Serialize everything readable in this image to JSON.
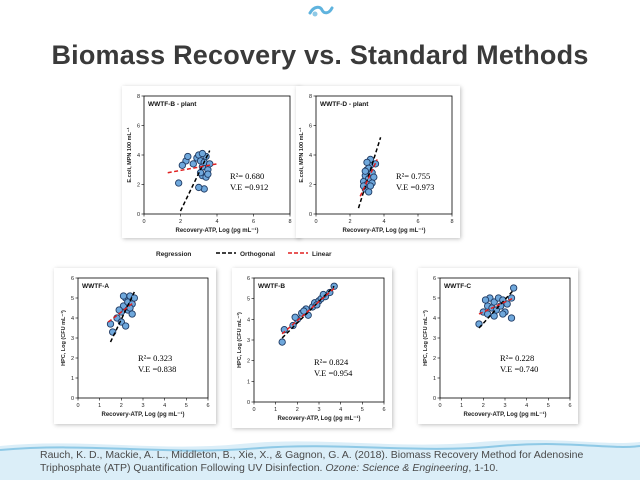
{
  "slide": {
    "title": "Biomass Recovery vs. Standard Methods",
    "citation_part1": "Rauch, K. D., Mackie, A. L., Middleton, B., Xie, X., & Gagnon, G. A. (2018). Biomass Recovery Method for Adenosine Triphosphate (ATP) Quantification Following UV Disinfection. ",
    "citation_journal": "Ozone: Science & Engineering",
    "citation_part2": ", 1-10."
  },
  "legend": {
    "title": "Regression",
    "items": [
      {
        "label": "Orthogonal",
        "color": "#000000",
        "style": "dashed"
      },
      {
        "label": "Linear",
        "color": "#e02020",
        "style": "dashed"
      }
    ]
  },
  "colors": {
    "marker_fill": "#6fa8dc",
    "marker_stroke": "#1f3a63",
    "orthogonal_line": "#000000",
    "linear_line": "#e02020",
    "accent_wave": "#8ec9e6"
  },
  "chart_data": [
    {
      "type": "scatter",
      "title": "WWTF-B - plant",
      "xlabel": "Recovery-ATP,  Log (pg mL⁻¹)",
      "ylabel": "E.coli,  MPN 100 mL⁻¹",
      "xlim": [
        0,
        8
      ],
      "ylim": [
        0,
        8
      ],
      "xticks": [
        0,
        2,
        4,
        6,
        8
      ],
      "yticks": [
        0,
        2,
        4,
        6,
        8
      ],
      "r2": "R²= 0.680",
      "ve": "V.E =0.912",
      "points": [
        [
          2.3,
          3.6
        ],
        [
          2.4,
          3.9
        ],
        [
          2.7,
          3.4
        ],
        [
          2.9,
          3.8
        ],
        [
          3.0,
          4.0
        ],
        [
          3.1,
          3.6
        ],
        [
          3.2,
          3.2
        ],
        [
          3.3,
          3.5
        ],
        [
          3.4,
          3.9
        ],
        [
          3.5,
          3.0
        ],
        [
          3.2,
          2.6
        ],
        [
          3.4,
          2.5
        ],
        [
          3.1,
          2.8
        ],
        [
          1.9,
          2.1
        ],
        [
          3.6,
          3.4
        ],
        [
          3.3,
          1.7
        ],
        [
          3.0,
          1.8
        ],
        [
          2.1,
          3.3
        ],
        [
          3.5,
          2.7
        ],
        [
          3.2,
          4.1
        ]
      ],
      "orthogonal": [
        [
          2.0,
          0.2
        ],
        [
          3.6,
          4.3
        ]
      ],
      "linear": [
        [
          1.3,
          2.8
        ],
        [
          4.0,
          3.4
        ]
      ]
    },
    {
      "type": "scatter",
      "title": "WWTF-D - plant",
      "xlabel": "Recovery-ATP,  Log (pg mL⁻¹)",
      "ylabel": "E.coli,  MPN 100 mL⁻¹",
      "xlim": [
        0,
        8
      ],
      "ylim": [
        0,
        8
      ],
      "xticks": [
        0,
        2,
        4,
        6,
        8
      ],
      "yticks": [
        0,
        2,
        4,
        6,
        8
      ],
      "r2": "R²= 0.755",
      "ve": "V.E =0.973",
      "points": [
        [
          2.8,
          2.2
        ],
        [
          2.9,
          2.6
        ],
        [
          3.0,
          3.0
        ],
        [
          3.1,
          2.4
        ],
        [
          3.2,
          3.3
        ],
        [
          3.0,
          2.0
        ],
        [
          2.9,
          1.7
        ],
        [
          3.1,
          1.5
        ],
        [
          3.3,
          2.8
        ],
        [
          3.2,
          3.7
        ],
        [
          3.4,
          2.5
        ],
        [
          3.0,
          3.5
        ],
        [
          2.8,
          1.9
        ],
        [
          3.3,
          2.1
        ],
        [
          3.1,
          3.1
        ],
        [
          2.9,
          2.9
        ],
        [
          3.5,
          3.4
        ],
        [
          3.2,
          1.9
        ]
      ],
      "orthogonal": [
        [
          2.5,
          0.4
        ],
        [
          3.8,
          5.2
        ]
      ],
      "linear": [
        [
          2.6,
          1.2
        ],
        [
          3.6,
          3.7
        ]
      ]
    },
    {
      "type": "scatter",
      "title": "WWTF-A",
      "xlabel": "Recovery-ATP,  Log (pg mL⁻¹)",
      "ylabel": "HPC,  Log (CFU mL⁻¹)",
      "xlim": [
        0,
        6
      ],
      "ylim": [
        0,
        6
      ],
      "xticks": [
        0,
        1,
        2,
        3,
        4,
        5,
        6
      ],
      "yticks": [
        0,
        1,
        2,
        3,
        4,
        5,
        6
      ],
      "r2": "R²= 0.323",
      "ve": "V.E =0.838",
      "points": [
        [
          1.5,
          3.7
        ],
        [
          1.6,
          3.3
        ],
        [
          1.8,
          4.0
        ],
        [
          2.0,
          4.3
        ],
        [
          2.1,
          4.6
        ],
        [
          2.2,
          5.0
        ],
        [
          2.3,
          4.8
        ],
        [
          2.4,
          5.1
        ],
        [
          2.5,
          4.7
        ],
        [
          2.3,
          4.4
        ],
        [
          2.0,
          3.8
        ],
        [
          2.2,
          3.6
        ],
        [
          1.9,
          4.4
        ],
        [
          2.4,
          4.5
        ],
        [
          2.6,
          5.0
        ],
        [
          2.1,
          5.1
        ],
        [
          2.5,
          4.2
        ]
      ],
      "orthogonal": [
        [
          1.5,
          2.8
        ],
        [
          2.6,
          5.3
        ]
      ],
      "linear": [
        [
          1.4,
          3.8
        ],
        [
          2.6,
          4.8
        ]
      ]
    },
    {
      "type": "scatter",
      "title": "WWTF-B",
      "xlabel": "Recovery-ATP,  Log (pg mL⁻¹)",
      "ylabel": "HPC,  Log (CFU mL⁻¹)",
      "xlim": [
        0,
        6
      ],
      "ylim": [
        0,
        6
      ],
      "xticks": [
        0,
        1,
        2,
        3,
        4,
        5,
        6
      ],
      "yticks": [
        0,
        1,
        2,
        3,
        4,
        5,
        6
      ],
      "r2": "R²= 0.824",
      "ve": "V.E =0.954",
      "points": [
        [
          1.3,
          2.9
        ],
        [
          1.4,
          3.5
        ],
        [
          1.8,
          3.7
        ],
        [
          2.0,
          4.0
        ],
        [
          2.2,
          4.3
        ],
        [
          2.4,
          4.5
        ],
        [
          2.5,
          4.2
        ],
        [
          2.7,
          4.6
        ],
        [
          2.8,
          4.8
        ],
        [
          3.0,
          4.9
        ],
        [
          3.1,
          5.0
        ],
        [
          3.3,
          5.1
        ],
        [
          3.5,
          5.3
        ],
        [
          3.7,
          5.6
        ],
        [
          2.3,
          4.4
        ],
        [
          1.9,
          4.1
        ],
        [
          2.9,
          4.7
        ],
        [
          3.2,
          5.2
        ]
      ],
      "orthogonal": [
        [
          1.3,
          3.1
        ],
        [
          3.7,
          5.6
        ]
      ],
      "linear": [
        [
          1.3,
          3.3
        ],
        [
          3.7,
          5.5
        ]
      ]
    },
    {
      "type": "scatter",
      "title": "WWTF-C",
      "xlabel": "Recovery-ATP,  Log (pg mL⁻¹)",
      "ylabel": "HPC,  Log (CFU mL⁻¹)",
      "xlim": [
        0,
        6
      ],
      "ylim": [
        0,
        6
      ],
      "xticks": [
        0,
        1,
        2,
        3,
        4,
        5,
        6
      ],
      "yticks": [
        0,
        1,
        2,
        3,
        4,
        5,
        6
      ],
      "r2": "R²= 0.228",
      "ve": "V.E =0.740",
      "points": [
        [
          1.8,
          3.7
        ],
        [
          2.0,
          4.3
        ],
        [
          2.2,
          4.6
        ],
        [
          2.3,
          5.0
        ],
        [
          2.4,
          4.5
        ],
        [
          2.5,
          4.8
        ],
        [
          2.6,
          4.4
        ],
        [
          2.7,
          5.0
        ],
        [
          2.8,
          4.6
        ],
        [
          2.9,
          4.9
        ],
        [
          3.0,
          4.3
        ],
        [
          3.1,
          4.7
        ],
        [
          3.3,
          5.0
        ],
        [
          3.4,
          5.5
        ],
        [
          2.2,
          4.2
        ],
        [
          2.5,
          4.1
        ],
        [
          2.9,
          4.2
        ],
        [
          3.3,
          4.0
        ],
        [
          2.1,
          4.9
        ]
      ],
      "orthogonal": [
        [
          1.8,
          3.5
        ],
        [
          3.4,
          5.4
        ]
      ],
      "linear": [
        [
          1.8,
          4.2
        ],
        [
          3.4,
          5.0
        ]
      ]
    }
  ]
}
